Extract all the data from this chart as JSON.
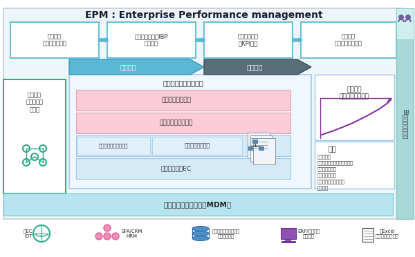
{
  "title": "EPM : Enterprise Performance management",
  "bg_color": "#ffffff",
  "top_boxes": [
    {
      "text": "中長期：\n戦略・計画策定"
    },
    {
      "text": "ビジネス計画：IBP\n予算策定"
    },
    {
      "text": "組織への展開\nとKPI設定"
    },
    {
      "text": "着地見込\nビジネスシナリオ"
    }
  ],
  "senkou_label": "先行指標",
  "kekka_label": "成果指標",
  "left_box_text": "外部環境\nマーケット\nデータ",
  "center_title": "実績情報：統合・蓄積",
  "row1_text": "人材マネジメント",
  "row2_text": "財務会計・連結会計",
  "row3_left": "開発・イノベーション",
  "row3_right": "サプライチェーン",
  "row4_text": "顧客・営業・EC",
  "right_top_title": "将来予測\nシミュレーション",
  "analysis_title": "分析",
  "analysis_items": [
    "・予実分析",
    "・事業・製品ライフサイクル",
    "・投資リターン",
    "・連結多軸損益",
    "・ポートフィリオ分析",
    "・・・・"
  ],
  "bi_text": "BI：ビジュアル化",
  "mdm_text": "データ収集・正規化（MDM）",
  "ec_text": "・EC\nIOT",
  "sfa_text": "SFA/CRM\nHRM",
  "dw_text": "・データウエアハウス\nデータベース",
  "erp_text": "ERP/レガシー\nシステム",
  "excel_text": "・Excel\nフラットファイル",
  "blue_light": "#5bb8d4",
  "blue_border": "#4da6c8",
  "gray_dark": "#5a6e7a",
  "pink_fill": "#f9ccd8",
  "pink_border": "#e8a0b0",
  "lblue_fill": "#d4eaf7",
  "lblue_border": "#9fc8e8",
  "teal_bi": "#a8d8d8",
  "mdm_fill": "#b8e4f0",
  "outer_fill": "#eef6fb",
  "green_border": "#3aaa7a",
  "center_fill": "#f0f8ff",
  "center_border": "#9fc8e8",
  "right_fill": "#ffffff",
  "right_border": "#9fc8e8"
}
